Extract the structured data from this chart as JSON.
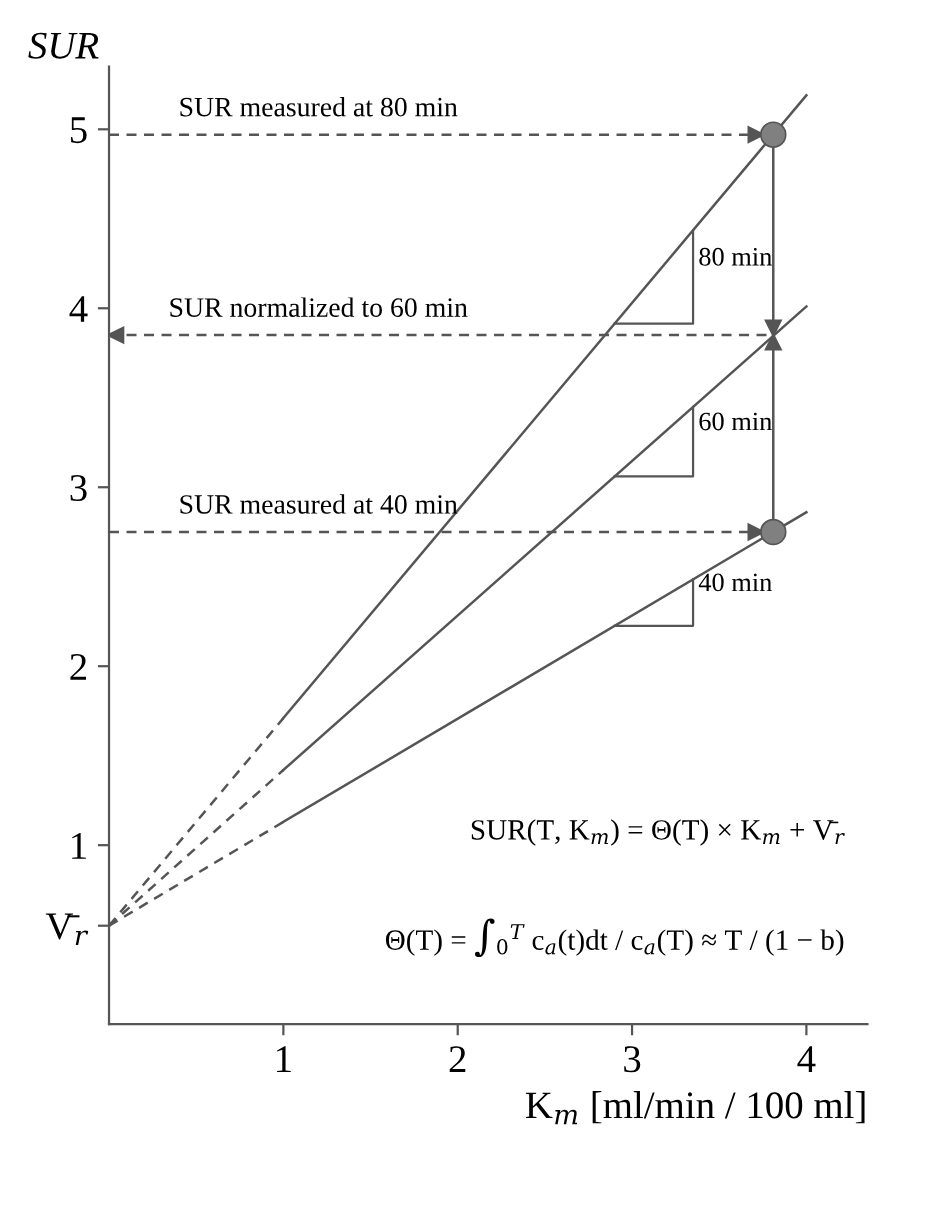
{
  "chart_data": {
    "type": "line",
    "xlabel": "K$_{m}$ [ml/min / 100 ml]",
    "ylabel": "SUR",
    "xlim": [
      0,
      4.35
    ],
    "ylim": [
      0,
      5.35
    ],
    "xticks": [
      1,
      2,
      3,
      4
    ],
    "yticks": [
      {
        "value": 0.55,
        "label": "V̄$_{r}$"
      },
      1,
      2,
      3,
      4,
      5
    ],
    "grid": false,
    "series": [
      {
        "line_style": "dashed",
        "color": "#555555",
        "x": [
          0,
          1
        ],
        "values": [
          0.55,
          1.71
        ]
      },
      {
        "line_style": "solid",
        "name": "80 min",
        "color": "#555555",
        "x": [
          1,
          4
        ],
        "values": [
          1.71,
          5.19
        ]
      },
      {
        "line_style": "dashed",
        "color": "#555555",
        "x": [
          0,
          1
        ],
        "values": [
          0.55,
          1.42
        ]
      },
      {
        "line_style": "solid",
        "name": "60 min",
        "color": "#555555",
        "x": [
          1,
          4
        ],
        "values": [
          1.42,
          4.01
        ]
      },
      {
        "line_style": "dashed",
        "color": "#555555",
        "x": [
          0,
          1
        ],
        "values": [
          0.55,
          1.13
        ]
      },
      {
        "line_style": "solid",
        "name": "40 min",
        "color": "#555555",
        "x": [
          1,
          4
        ],
        "values": [
          1.13,
          2.86
        ]
      },
      {
        "type": "scatter",
        "marker": "circle",
        "color": "#808080",
        "x": [
          3.81,
          3.81
        ],
        "values": [
          4.97,
          2.75
        ]
      }
    ],
    "ref_lines": [
      {
        "axis": "y",
        "value": 4.97,
        "label": "SUR measured at 80 min",
        "line_style": "dashed",
        "color": "#555555"
      },
      {
        "axis": "y",
        "value": 3.85,
        "label": "SUR normalized to 60 min",
        "line_style": "dashed",
        "color": "#555555"
      },
      {
        "axis": "y",
        "value": 2.75,
        "label": "SUR measured at 40 min",
        "line_style": "dashed",
        "color": "#555555"
      }
    ],
    "annotations": [
      "SUR(T, K$_{m}$) = Θ(T) × K$_{m}$ + V̄$_{r}$",
      "Θ(T) = ∫$_{0}$$^{T}$ c$_{a}$(t)dt / c$_{a}$(T) ≈ T / (1 − b)"
    ]
  }
}
